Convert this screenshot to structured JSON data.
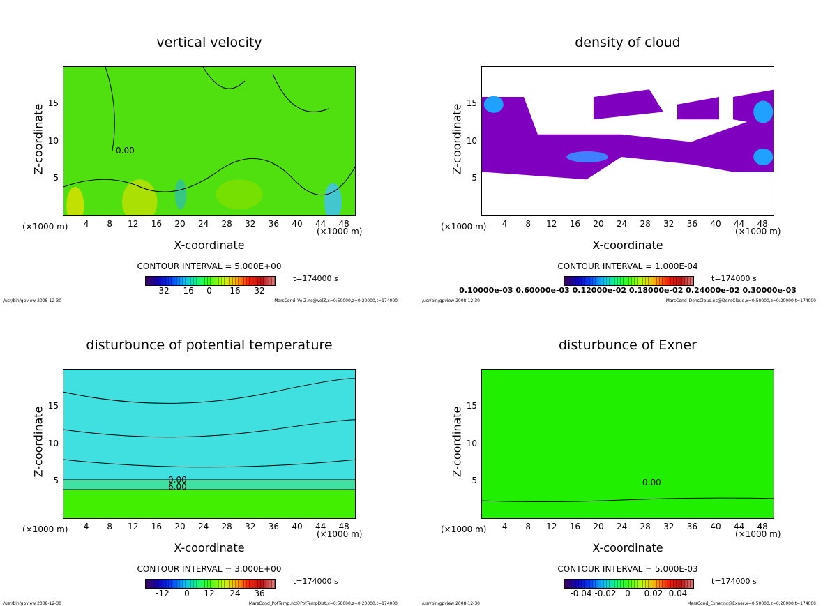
{
  "chart_data": [
    {
      "type": "heatmap",
      "title": "vertical velocity",
      "xlabel": "X-coordinate",
      "ylabel": "Z-coordinate",
      "x_unit": "(×1000 m)",
      "y_unit": "(×1000 m)",
      "xlim": [
        0,
        50
      ],
      "ylim": [
        0,
        20
      ],
      "xticks": [
        4,
        8,
        12,
        16,
        20,
        24,
        28,
        32,
        36,
        40,
        44,
        48
      ],
      "yticks": [
        5,
        10,
        15
      ],
      "contour_interval": "CONTOUR INTERVAL = 5.000E+00",
      "contour_labels": [
        "0.00"
      ],
      "colorbar_ticks": [
        "-32",
        "-16",
        "0",
        "16",
        "32"
      ],
      "time": "t=174000 s",
      "footer_left": "/usr/bin/gpview  2008-12-30",
      "footer_right": "MarsCond_VelZ.nc@VelZ,x=0:50000,z=0:20000,t=174000",
      "field_color": "#50e010"
    },
    {
      "type": "heatmap",
      "title": "density of cloud",
      "xlabel": "X-coordinate",
      "ylabel": "Z-coordinate",
      "x_unit": "(×1000 m)",
      "y_unit": "(×1000 m)",
      "xlim": [
        0,
        50
      ],
      "ylim": [
        0,
        20
      ],
      "xticks": [
        4,
        8,
        12,
        16,
        20,
        24,
        28,
        32,
        36,
        40,
        44,
        48
      ],
      "yticks": [
        5,
        10,
        15
      ],
      "contour_interval": "CONTOUR INTERVAL = 1.000E-04",
      "contour_labels": [],
      "colorbar_ticks": [
        "0.10000e-03 0.60000e-03 0.12000e-02 0.18000e-02 0.24000e-02 0.30000e-03"
      ],
      "time": "t=174000 s",
      "footer_left": "/usr/bin/gpview  2008-12-30",
      "footer_right": "MarsCond_DensCloud.nc@DensCloud,x=0:50000,z=0:20000,t=174000",
      "field_color": "#8000c0"
    },
    {
      "type": "heatmap",
      "title": "disturbunce of potential temperature",
      "xlabel": "X-coordinate",
      "ylabel": "Z-coordinate",
      "x_unit": "(×1000 m)",
      "y_unit": "(×1000 m)",
      "xlim": [
        0,
        50
      ],
      "ylim": [
        0,
        20
      ],
      "xticks": [
        4,
        8,
        12,
        16,
        20,
        24,
        28,
        32,
        36,
        40,
        44,
        48
      ],
      "yticks": [
        5,
        10,
        15
      ],
      "contour_interval": "CONTOUR INTERVAL = 3.000E+00",
      "contour_labels": [
        "0.00",
        "6.00"
      ],
      "colorbar_ticks": [
        "-12",
        "0",
        "12",
        "24",
        "36"
      ],
      "time": "t=174000 s",
      "footer_left": "/usr/bin/gpview  2008-12-30",
      "footer_right": "MarsCond_PotTemp.nc@PotTempDist,x=0:50000,z=0:20000,t=174000",
      "field_color": "#40e0e0"
    },
    {
      "type": "heatmap",
      "title": "disturbunce of Exner",
      "xlabel": "X-coordinate",
      "ylabel": "Z-coordinate",
      "x_unit": "(×1000 m)",
      "y_unit": "(×1000 m)",
      "xlim": [
        0,
        50
      ],
      "ylim": [
        0,
        20
      ],
      "xticks": [
        4,
        8,
        12,
        16,
        20,
        24,
        28,
        32,
        36,
        40,
        44,
        48
      ],
      "yticks": [
        5,
        10,
        15
      ],
      "contour_interval": "CONTOUR INTERVAL = 5.000E-03",
      "contour_labels": [
        "0.00"
      ],
      "colorbar_ticks": [
        "-0.04",
        "-0.02",
        "0",
        "0.02",
        "0.04"
      ],
      "time": "t=174000 s",
      "footer_left": "/usr/bin/gpview  2008-12-30",
      "footer_right": "MarsCond_Exner.nc@Exner,x=0:50000,z=0:20000,t=174000",
      "field_color": "#20f000"
    }
  ]
}
